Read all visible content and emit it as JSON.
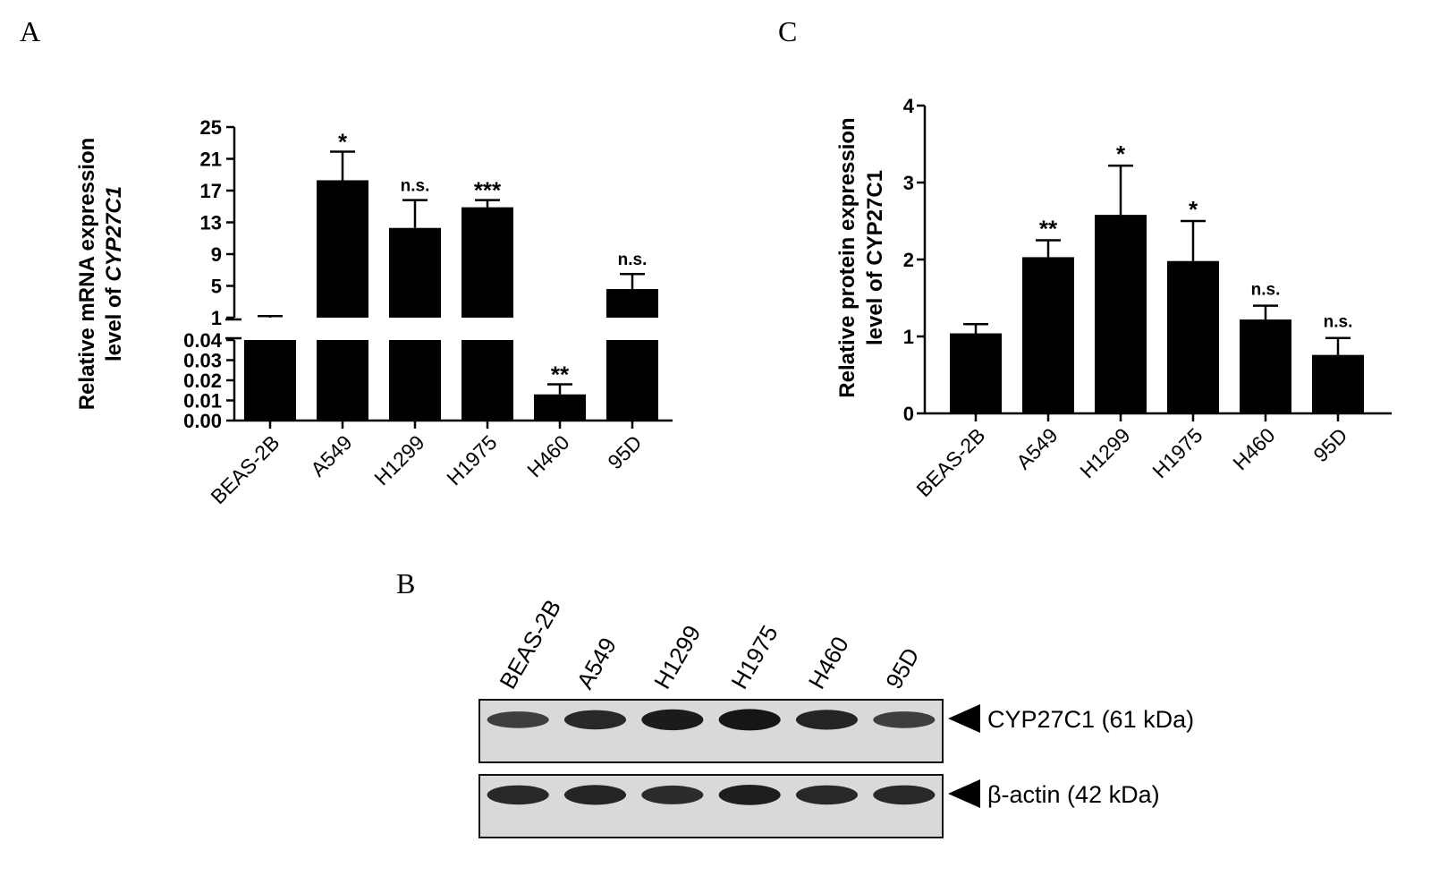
{
  "panels": {
    "A": "A",
    "B": "B",
    "C": "C"
  },
  "chart_data": [
    {
      "panel": "A",
      "type": "bar",
      "categories": [
        "BEAS-2B",
        "A549",
        "H1299",
        "H1975",
        "H460",
        "95D"
      ],
      "values": [
        1.0,
        18.3,
        12.3,
        14.9,
        0.013,
        4.6
      ],
      "errors": [
        0.2,
        3.6,
        3.5,
        0.9,
        0.005,
        1.9
      ],
      "significance": [
        "",
        "*",
        "n.s.",
        "***",
        "**",
        "n.s."
      ],
      "ylabel_line1": "Relative mRNA expression",
      "ylabel_line2_prefix": "level of ",
      "ylabel_line2_gene": "CYP27C1",
      "broken_axis": true,
      "lower_segment": {
        "ylim": [
          0,
          0.04
        ],
        "ticks": [
          "0.00",
          "0.01",
          "0.02",
          "0.03",
          "0.04"
        ]
      },
      "upper_segment": {
        "ylim": [
          1,
          25
        ],
        "ticks": [
          "1",
          "5",
          "9",
          "13",
          "17",
          "21",
          "25"
        ]
      },
      "grid": false
    },
    {
      "panel": "C",
      "type": "bar",
      "categories": [
        "BEAS-2B",
        "A549",
        "H1299",
        "H1975",
        "H460",
        "95D"
      ],
      "values": [
        1.04,
        2.03,
        2.58,
        1.98,
        1.22,
        0.76
      ],
      "errors": [
        0.12,
        0.22,
        0.64,
        0.52,
        0.18,
        0.22
      ],
      "significance": [
        "",
        "**",
        "*",
        "*",
        "n.s.",
        "n.s."
      ],
      "ylabel_line1": "Relative protein expression",
      "ylabel_line2": "level of CYP27C1",
      "ylim": [
        0,
        4
      ],
      "ticks": [
        "0",
        "1",
        "2",
        "3",
        "4"
      ],
      "grid": false
    }
  ],
  "western_blot": {
    "panel": "B",
    "lanes": [
      "BEAS-2B",
      "A549",
      "H1299",
      "H1975",
      "H460",
      "95D"
    ],
    "blots": [
      {
        "label": "CYP27C1 (61 kDa)",
        "band_intensity": [
          0.55,
          0.8,
          0.95,
          1.0,
          0.85,
          0.55
        ]
      },
      {
        "label": "β-actin (42 kDa)",
        "band_intensity": [
          0.8,
          0.85,
          0.75,
          0.9,
          0.8,
          0.8
        ]
      }
    ]
  }
}
